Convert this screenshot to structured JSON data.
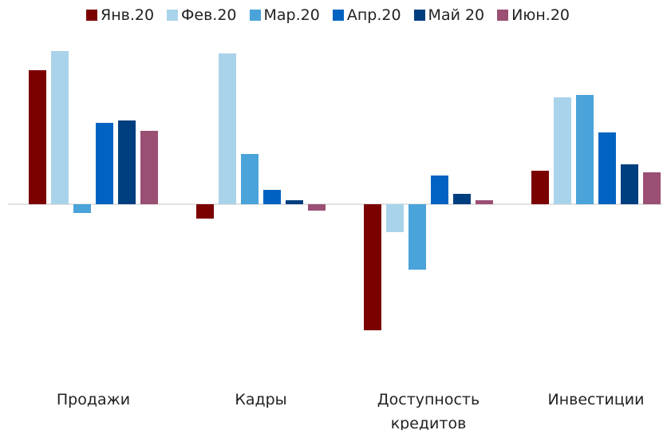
{
  "chart_data": {
    "type": "bar",
    "categories": [
      "Продажи",
      "Кадры",
      "Доступность кредитов",
      "Инвестиции"
    ],
    "series": [
      {
        "name": "Янв.20",
        "color": "#7b0000",
        "values": [
          16.8,
          -1.8,
          -15.8,
          4.2
        ]
      },
      {
        "name": "Фев.20",
        "color": "#a9d3ea",
        "values": [
          19.2,
          18.9,
          -3.5,
          13.4
        ]
      },
      {
        "name": "Мар.20",
        "color": "#4aa3d9",
        "values": [
          -1.1,
          6.3,
          -8.2,
          13.7
        ]
      },
      {
        "name": "Апр.20",
        "color": "#0063c2",
        "values": [
          10.2,
          1.8,
          3.6,
          9.0
        ]
      },
      {
        "name": "Май 20",
        "color": "#003f7f",
        "values": [
          10.5,
          0.5,
          1.3,
          5.0
        ]
      },
      {
        "name": "Июн.20",
        "color": "#9a4f73",
        "values": [
          9.2,
          -0.8,
          0.5,
          4.0
        ]
      }
    ],
    "ylim": [
      -20,
      20
    ],
    "legend": "top"
  }
}
